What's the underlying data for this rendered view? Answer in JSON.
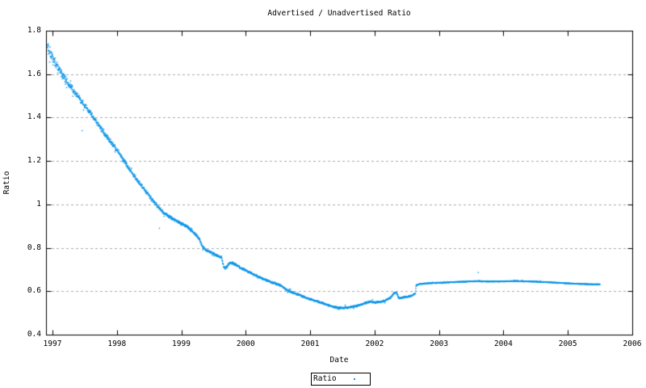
{
  "colors": {
    "background": "#ffffff",
    "axis": "#000000",
    "text": "#000000",
    "grid": "#aaaaaa",
    "series": "#0e96e8"
  },
  "chart_data": {
    "type": "scatter",
    "title": "Advertised / Unadvertised Ratio",
    "xlabel": "Date",
    "ylabel": "Ratio",
    "xlim": [
      1996.9,
      2006
    ],
    "ylim": [
      0.4,
      1.8
    ],
    "xtick_values": [
      1997,
      1998,
      1999,
      2000,
      2001,
      2002,
      2003,
      2004,
      2005,
      2006
    ],
    "xtick_labels": [
      "1997",
      "1998",
      "1999",
      "2000",
      "2001",
      "2002",
      "2003",
      "2004",
      "2005",
      "2006"
    ],
    "ytick_values": [
      0.4,
      0.6,
      0.8,
      1.0,
      1.2,
      1.4,
      1.6,
      1.8
    ],
    "ytick_labels": [
      "0.4",
      "0.6",
      "0.8",
      "1",
      "1.2",
      "1.4",
      "1.6",
      "1.8"
    ],
    "grid": {
      "horizontal_dashed": true,
      "vertical": false
    },
    "legend": {
      "position": "below-plot",
      "entries": [
        {
          "label": "Ratio",
          "marker": "dot",
          "color": "#0e96e8"
        }
      ]
    },
    "series": [
      {
        "name": "Ratio",
        "style": "dots",
        "color": "#0e96e8",
        "x_start": 1996.92,
        "x_end": 2005.5,
        "points_per_year": 365,
        "keypoints": [
          [
            1996.92,
            1.735
          ],
          [
            1996.94,
            1.715
          ],
          [
            1996.97,
            1.7
          ],
          [
            1997.0,
            1.675
          ],
          [
            1997.04,
            1.655
          ],
          [
            1997.08,
            1.635
          ],
          [
            1997.12,
            1.615
          ],
          [
            1997.16,
            1.595
          ],
          [
            1997.2,
            1.578
          ],
          [
            1997.25,
            1.556
          ],
          [
            1997.3,
            1.536
          ],
          [
            1997.35,
            1.515
          ],
          [
            1997.4,
            1.495
          ],
          [
            1997.45,
            1.475
          ],
          [
            1997.5,
            1.455
          ],
          [
            1997.55,
            1.435
          ],
          [
            1997.6,
            1.415
          ],
          [
            1997.65,
            1.395
          ],
          [
            1997.7,
            1.374
          ],
          [
            1997.75,
            1.352
          ],
          [
            1997.8,
            1.33
          ],
          [
            1997.85,
            1.31
          ],
          [
            1997.9,
            1.29
          ],
          [
            1997.95,
            1.27
          ],
          [
            1998.0,
            1.25
          ],
          [
            1998.05,
            1.23
          ],
          [
            1998.1,
            1.206
          ],
          [
            1998.15,
            1.184
          ],
          [
            1998.2,
            1.161
          ],
          [
            1998.25,
            1.14
          ],
          [
            1998.3,
            1.119
          ],
          [
            1998.35,
            1.099
          ],
          [
            1998.4,
            1.079
          ],
          [
            1998.45,
            1.059
          ],
          [
            1998.5,
            1.042
          ],
          [
            1998.55,
            1.022
          ],
          [
            1998.6,
            1.003
          ],
          [
            1998.65,
            0.986
          ],
          [
            1998.7,
            0.969
          ],
          [
            1998.75,
            0.956
          ],
          [
            1998.8,
            0.946
          ],
          [
            1998.85,
            0.936
          ],
          [
            1998.9,
            0.928
          ],
          [
            1999.0,
            0.912
          ],
          [
            1999.1,
            0.896
          ],
          [
            1999.2,
            0.868
          ],
          [
            1999.27,
            0.846
          ],
          [
            1999.33,
            0.805
          ],
          [
            1999.4,
            0.786
          ],
          [
            1999.5,
            0.772
          ],
          [
            1999.58,
            0.762
          ],
          [
            1999.63,
            0.753
          ],
          [
            1999.655,
            0.714
          ],
          [
            1999.68,
            0.706
          ],
          [
            1999.71,
            0.713
          ],
          [
            1999.74,
            0.728
          ],
          [
            1999.78,
            0.732
          ],
          [
            1999.85,
            0.722
          ],
          [
            1999.92,
            0.708
          ],
          [
            2000.0,
            0.696
          ],
          [
            2000.1,
            0.681
          ],
          [
            2000.2,
            0.666
          ],
          [
            2000.3,
            0.653
          ],
          [
            2000.4,
            0.642
          ],
          [
            2000.5,
            0.632
          ],
          [
            2000.58,
            0.62
          ],
          [
            2000.66,
            0.602
          ],
          [
            2000.75,
            0.592
          ],
          [
            2000.85,
            0.581
          ],
          [
            2000.95,
            0.569
          ],
          [
            2001.05,
            0.558
          ],
          [
            2001.15,
            0.549
          ],
          [
            2001.25,
            0.54
          ],
          [
            2001.36,
            0.528
          ],
          [
            2001.45,
            0.523
          ],
          [
            2001.55,
            0.524
          ],
          [
            2001.65,
            0.528
          ],
          [
            2001.75,
            0.534
          ],
          [
            2001.85,
            0.545
          ],
          [
            2001.92,
            0.552
          ],
          [
            2002.0,
            0.548
          ],
          [
            2002.08,
            0.551
          ],
          [
            2002.16,
            0.556
          ],
          [
            2002.24,
            0.568
          ],
          [
            2002.3,
            0.591
          ],
          [
            2002.34,
            0.594
          ],
          [
            2002.38,
            0.567
          ],
          [
            2002.45,
            0.572
          ],
          [
            2002.52,
            0.576
          ],
          [
            2002.58,
            0.58
          ],
          [
            2002.625,
            0.588
          ],
          [
            2002.635,
            0.59
          ],
          [
            2002.645,
            0.628
          ],
          [
            2002.7,
            0.633
          ],
          [
            2002.8,
            0.636
          ],
          [
            2002.9,
            0.638
          ],
          [
            2003.0,
            0.639
          ],
          [
            2003.15,
            0.641
          ],
          [
            2003.3,
            0.643
          ],
          [
            2003.45,
            0.645
          ],
          [
            2003.6,
            0.646
          ],
          [
            2003.75,
            0.645
          ],
          [
            2003.9,
            0.645
          ],
          [
            2004.05,
            0.646
          ],
          [
            2004.2,
            0.647
          ],
          [
            2004.35,
            0.646
          ],
          [
            2004.5,
            0.644
          ],
          [
            2004.65,
            0.642
          ],
          [
            2004.8,
            0.64
          ],
          [
            2004.95,
            0.637
          ],
          [
            2005.1,
            0.635
          ],
          [
            2005.25,
            0.633
          ],
          [
            2005.4,
            0.632
          ],
          [
            2005.5,
            0.632
          ]
        ],
        "noise_keypoints": [
          [
            1996.92,
            0.025
          ],
          [
            1997.0,
            0.02
          ],
          [
            1997.2,
            0.013
          ],
          [
            1997.5,
            0.01
          ],
          [
            1998.0,
            0.008
          ],
          [
            1998.6,
            0.006
          ],
          [
            1999.2,
            0.005
          ],
          [
            2000.0,
            0.004
          ],
          [
            2001.0,
            0.0035
          ],
          [
            2002.0,
            0.0035
          ],
          [
            2002.63,
            0.003
          ],
          [
            2002.66,
            0.0015
          ],
          [
            2003.5,
            0.0015
          ],
          [
            2004.5,
            0.0015
          ],
          [
            2005.5,
            0.0015
          ]
        ],
        "outliers": [
          [
            1997.46,
            1.34
          ],
          [
            1998.66,
            0.89
          ],
          [
            2003.61,
            0.686
          ]
        ]
      }
    ]
  }
}
